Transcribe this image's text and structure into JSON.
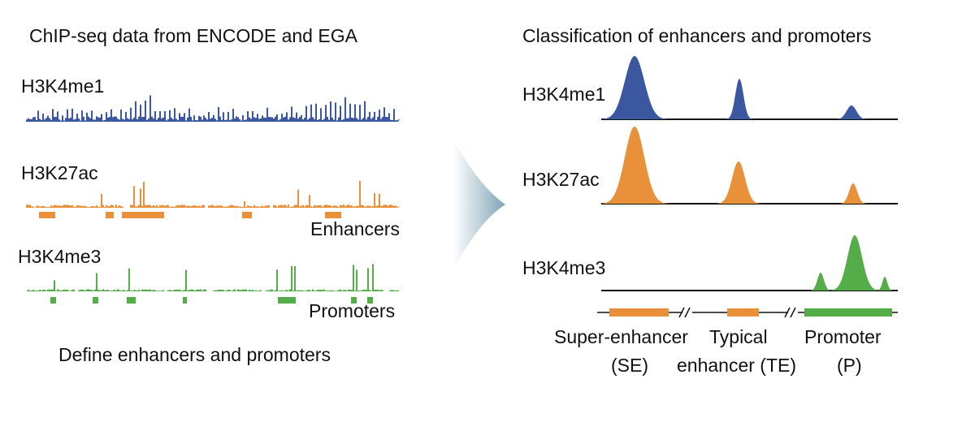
{
  "left": {
    "title": "ChIP-seq data from ENCODE and EGA",
    "tracks": [
      "H3K4me1",
      "H3K27ac",
      "H3K4me3"
    ],
    "labels": [
      "Enhancers",
      "Promoters"
    ],
    "caption": "Define enhancers and promoters"
  },
  "right": {
    "title": "Classification of enhancers and promoters",
    "tracks": [
      "H3K4me1",
      "H3K27ac",
      "H3K4me3"
    ],
    "legend": [
      "Super-enhancer",
      "(SE)",
      "Typical",
      "enhancer (TE)",
      "Promoter",
      "(P)"
    ]
  }
}
